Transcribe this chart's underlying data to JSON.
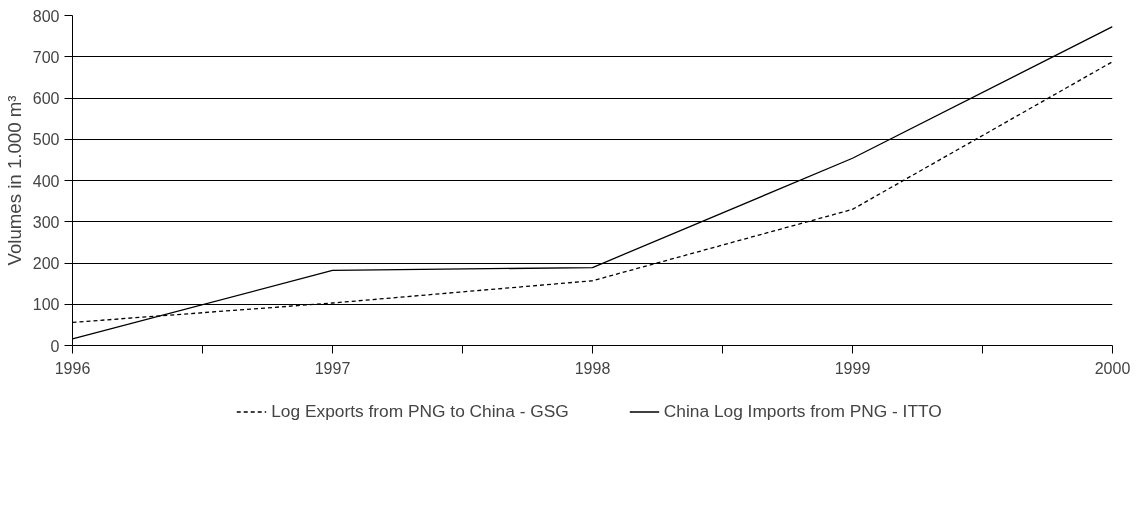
{
  "chart_data": {
    "type": "line",
    "ylabel": "Volumes in 1.000 m³",
    "x": [
      1996,
      1997,
      1998,
      1999,
      2000
    ],
    "series": [
      {
        "name": "Log Exports from PNG to China - GSG",
        "color": "#000000",
        "line_style": "dashed",
        "values": [
          56,
          103,
          157,
          330,
          688
        ]
      },
      {
        "name": "China Log Imports from PNG - ITTO",
        "color": "#000000",
        "line_style": "solid",
        "values": [
          16,
          182,
          189,
          454,
          773
        ]
      }
    ],
    "xlim": [
      1996,
      2000
    ],
    "ylim": [
      0,
      800
    ],
    "xticks": [
      1996,
      {
        "value": 1996.5,
        "label": null
      },
      1997,
      {
        "value": 1997.5,
        "label": null
      },
      1998,
      {
        "value": 1998.5,
        "label": null
      },
      1999,
      {
        "value": 1999.5,
        "label": null
      },
      2000
    ],
    "yticks": [
      0,
      100,
      200,
      300,
      400,
      500,
      600,
      700,
      800
    ],
    "grid": "y",
    "legend": "bottom",
    "marker": "none"
  }
}
